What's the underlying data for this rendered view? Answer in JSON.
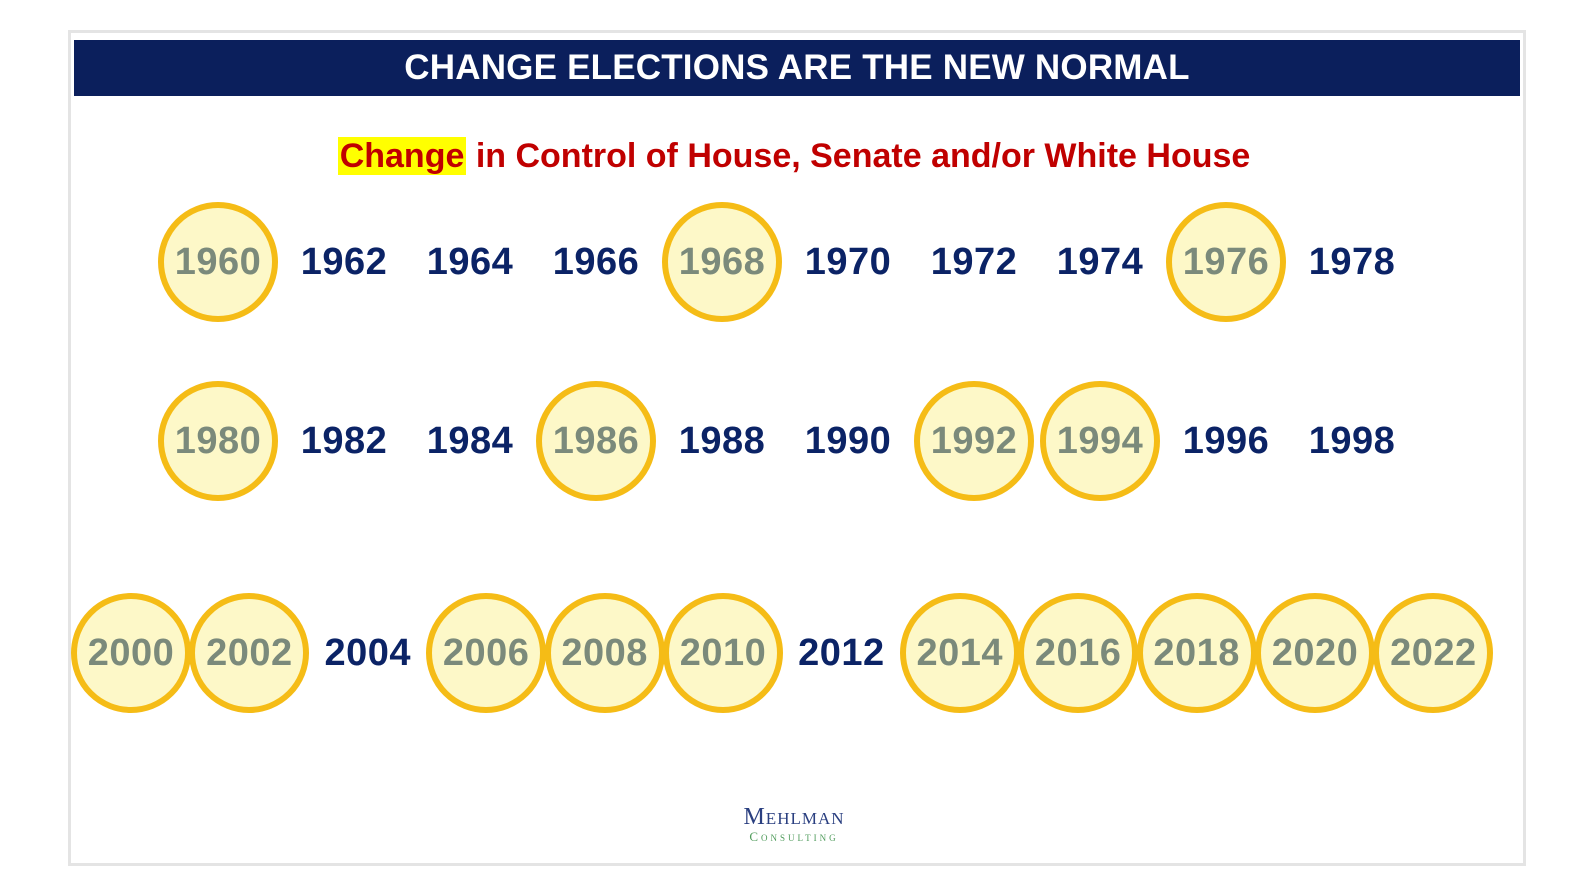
{
  "header": {
    "title": "CHANGE ELECTIONS ARE THE NEW NORMAL"
  },
  "subtitle": {
    "highlight": "Change",
    "rest": " in Control of House, Senate and/or White House"
  },
  "colors": {
    "header_bg": "#0b1f5c",
    "subtitle_red": "#c00000",
    "highlight_yellow": "#ffff00",
    "circle_border": "#f5bc16",
    "circle_fill": "#fdf8c8",
    "year_navy": "#0b2366",
    "circled_year_gray": "#7b8a7b"
  },
  "rows": [
    {
      "years": [
        {
          "label": "1960",
          "circled": true
        },
        {
          "label": "1962",
          "circled": false
        },
        {
          "label": "1964",
          "circled": false
        },
        {
          "label": "1966",
          "circled": false
        },
        {
          "label": "1968",
          "circled": true
        },
        {
          "label": "1970",
          "circled": false
        },
        {
          "label": "1972",
          "circled": false
        },
        {
          "label": "1974",
          "circled": false
        },
        {
          "label": "1976",
          "circled": true
        },
        {
          "label": "1978",
          "circled": false
        }
      ]
    },
    {
      "years": [
        {
          "label": "1980",
          "circled": true
        },
        {
          "label": "1982",
          "circled": false
        },
        {
          "label": "1984",
          "circled": false
        },
        {
          "label": "1986",
          "circled": true
        },
        {
          "label": "1988",
          "circled": false
        },
        {
          "label": "1990",
          "circled": false
        },
        {
          "label": "1992",
          "circled": true
        },
        {
          "label": "1994",
          "circled": true
        },
        {
          "label": "1996",
          "circled": false
        },
        {
          "label": "1998",
          "circled": false
        }
      ]
    },
    {
      "years": [
        {
          "label": "2000",
          "circled": true
        },
        {
          "label": "2002",
          "circled": true
        },
        {
          "label": "2004",
          "circled": false
        },
        {
          "label": "2006",
          "circled": true
        },
        {
          "label": "2008",
          "circled": true
        },
        {
          "label": "2010",
          "circled": true
        },
        {
          "label": "2012",
          "circled": false
        },
        {
          "label": "2014",
          "circled": true
        },
        {
          "label": "2016",
          "circled": true
        },
        {
          "label": "2018",
          "circled": true
        },
        {
          "label": "2020",
          "circled": true
        },
        {
          "label": "2022",
          "circled": true
        }
      ]
    }
  ],
  "logo": {
    "main": "Mehlman",
    "sub": "Consulting"
  }
}
